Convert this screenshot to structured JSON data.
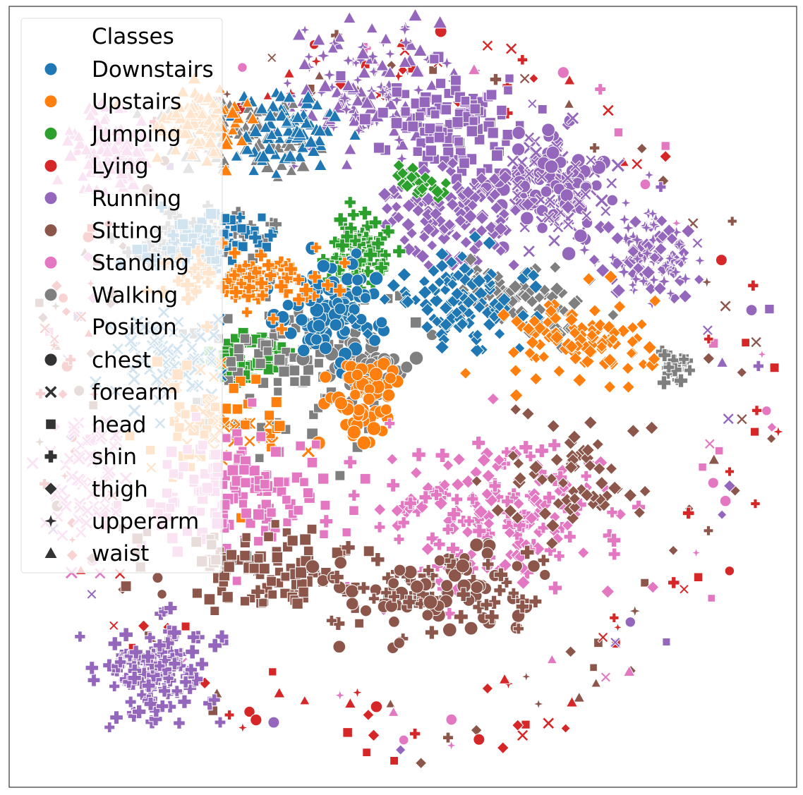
{
  "chart_data": {
    "type": "scatter",
    "title": "",
    "xlabel": "",
    "ylabel": "",
    "grid": false,
    "axes_ticks": false,
    "legend_position": "upper-left",
    "legend": {
      "hue_title": "Classes",
      "style_title": "Position",
      "classes": [
        {
          "name": "Downstairs",
          "color": "#1f77b4"
        },
        {
          "name": "Upstairs",
          "color": "#ff7f0e"
        },
        {
          "name": "Jumping",
          "color": "#2ca02c"
        },
        {
          "name": "Lying",
          "color": "#d62728"
        },
        {
          "name": "Running",
          "color": "#9467bd"
        },
        {
          "name": "Sitting",
          "color": "#8c564b"
        },
        {
          "name": "Standing",
          "color": "#e377c2"
        },
        {
          "name": "Walking",
          "color": "#7f7f7f"
        }
      ],
      "positions": [
        {
          "name": "chest",
          "marker": "circle"
        },
        {
          "name": "forearm",
          "marker": "x"
        },
        {
          "name": "head",
          "marker": "square"
        },
        {
          "name": "shin",
          "marker": "plus"
        },
        {
          "name": "thigh",
          "marker": "diamond"
        },
        {
          "name": "upperarm",
          "marker": "star4"
        },
        {
          "name": "waist",
          "marker": "triangle"
        }
      ]
    },
    "xlim": [
      -100,
      100
    ],
    "ylim": [
      -100,
      100
    ],
    "clusters": [
      {
        "class": "Running",
        "cx": -10,
        "cy": 78,
        "rx": 15,
        "ry": 15,
        "n": 140,
        "markers": [
          "triangle",
          "star4"
        ]
      },
      {
        "class": "Running",
        "cx": 12,
        "cy": 69,
        "rx": 12,
        "ry": 10,
        "n": 120,
        "markers": [
          "square"
        ]
      },
      {
        "class": "Running",
        "cx": 37,
        "cy": 55,
        "rx": 12,
        "ry": 12,
        "n": 150,
        "markers": [
          "x",
          "circle"
        ]
      },
      {
        "class": "Running",
        "cx": 63,
        "cy": 36,
        "rx": 9,
        "ry": 11,
        "n": 110,
        "markers": [
          "star4",
          "diamond"
        ]
      },
      {
        "class": "Running",
        "cx": 15,
        "cy": 46,
        "rx": 14,
        "ry": 10,
        "n": 120,
        "markers": [
          "diamond"
        ]
      },
      {
        "class": "Running",
        "cx": -63,
        "cy": -70,
        "rx": 11,
        "ry": 10,
        "n": 140,
        "markers": [
          "plus"
        ]
      },
      {
        "class": "Jumping",
        "cx": -11,
        "cy": 36,
        "rx": 7,
        "ry": 8,
        "n": 80,
        "markers": [
          "plus"
        ]
      },
      {
        "class": "Jumping",
        "cx": -40,
        "cy": 10,
        "rx": 8,
        "ry": 5,
        "n": 60,
        "markers": [
          "square"
        ]
      },
      {
        "class": "Jumping",
        "cx": 4,
        "cy": 55,
        "rx": 10,
        "ry": 4,
        "n": 25,
        "markers": [
          "diamond"
        ]
      },
      {
        "class": "Walking",
        "cx": -42,
        "cy": 67,
        "rx": 16,
        "ry": 9,
        "n": 90,
        "markers": [
          "triangle"
        ]
      },
      {
        "class": "Walking",
        "cx": -53,
        "cy": 40,
        "rx": 12,
        "ry": 6,
        "n": 80,
        "markers": [
          "plus"
        ]
      },
      {
        "class": "Walking",
        "cx": -30,
        "cy": 12,
        "rx": 20,
        "ry": 20,
        "n": 110,
        "markers": [
          "square"
        ]
      },
      {
        "class": "Walking",
        "cx": 30,
        "cy": 25,
        "rx": 15,
        "ry": 8,
        "n": 80,
        "markers": [
          "diamond"
        ]
      },
      {
        "class": "Walking",
        "cx": -10,
        "cy": 8,
        "rx": 8,
        "ry": 6,
        "n": 50,
        "markers": [
          "circle"
        ]
      },
      {
        "class": "Walking",
        "cx": 68,
        "cy": 8,
        "rx": 4,
        "ry": 4,
        "n": 25,
        "markers": [
          "plus"
        ]
      },
      {
        "class": "Downstairs",
        "cx": -50,
        "cy": 40,
        "rx": 12,
        "ry": 6,
        "n": 90,
        "markers": [
          "plus",
          "square"
        ]
      },
      {
        "class": "Downstairs",
        "cx": -18,
        "cy": 22,
        "rx": 10,
        "ry": 12,
        "n": 110,
        "markers": [
          "circle"
        ]
      },
      {
        "class": "Downstairs",
        "cx": 15,
        "cy": 25,
        "rx": 15,
        "ry": 10,
        "n": 100,
        "markers": [
          "diamond"
        ]
      },
      {
        "class": "Downstairs",
        "cx": -60,
        "cy": 10,
        "rx": 12,
        "ry": 10,
        "n": 70,
        "markers": [
          "x"
        ]
      },
      {
        "class": "Downstairs",
        "cx": -30,
        "cy": 67,
        "rx": 10,
        "ry": 9,
        "n": 70,
        "markers": [
          "triangle"
        ]
      },
      {
        "class": "Upstairs",
        "cx": -52,
        "cy": 70,
        "rx": 10,
        "ry": 8,
        "n": 90,
        "markers": [
          "triangle"
        ]
      },
      {
        "class": "Upstairs",
        "cx": -40,
        "cy": 30,
        "rx": 15,
        "ry": 6,
        "n": 90,
        "markers": [
          "plus"
        ]
      },
      {
        "class": "Upstairs",
        "cx": -10,
        "cy": 0,
        "rx": 8,
        "ry": 8,
        "n": 70,
        "markers": [
          "circle"
        ]
      },
      {
        "class": "Upstairs",
        "cx": 45,
        "cy": 15,
        "rx": 15,
        "ry": 10,
        "n": 100,
        "markers": [
          "diamond"
        ]
      },
      {
        "class": "Upstairs",
        "cx": -50,
        "cy": -5,
        "rx": 16,
        "ry": 12,
        "n": 80,
        "markers": [
          "square",
          "x"
        ]
      },
      {
        "class": "Standing",
        "cx": -75,
        "cy": 63,
        "rx": 8,
        "ry": 10,
        "n": 90,
        "markers": [
          "triangle"
        ]
      },
      {
        "class": "Standing",
        "cx": -45,
        "cy": -25,
        "rx": 20,
        "ry": 12,
        "n": 140,
        "markers": [
          "square"
        ]
      },
      {
        "class": "Standing",
        "cx": 25,
        "cy": -30,
        "rx": 25,
        "ry": 16,
        "n": 190,
        "markers": [
          "diamond",
          "plus"
        ]
      },
      {
        "class": "Standing",
        "cx": -80,
        "cy": -20,
        "rx": 8,
        "ry": 15,
        "n": 60,
        "markers": [
          "x"
        ]
      },
      {
        "class": "Sitting",
        "cx": -35,
        "cy": -45,
        "rx": 20,
        "ry": 8,
        "n": 110,
        "markers": [
          "square"
        ]
      },
      {
        "class": "Sitting",
        "cx": 10,
        "cy": -50,
        "rx": 25,
        "ry": 10,
        "n": 120,
        "markers": [
          "plus",
          "circle"
        ]
      },
      {
        "class": "Sitting",
        "cx": 45,
        "cy": -20,
        "rx": 15,
        "ry": 12,
        "n": 60,
        "markers": [
          "diamond"
        ]
      }
    ]
  }
}
